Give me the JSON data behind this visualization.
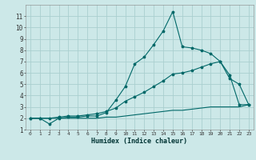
{
  "xlabel": "Humidex (Indice chaleur)",
  "bg_color": "#cce8e8",
  "grid_color": "#aacfcf",
  "line_color": "#006868",
  "xlim": [
    -0.5,
    23.5
  ],
  "ylim": [
    1,
    12
  ],
  "xticks": [
    0,
    1,
    2,
    3,
    4,
    5,
    6,
    7,
    8,
    9,
    10,
    11,
    12,
    13,
    14,
    15,
    16,
    17,
    18,
    19,
    20,
    21,
    22,
    23
  ],
  "yticks": [
    1,
    2,
    3,
    4,
    5,
    6,
    7,
    8,
    9,
    10,
    11
  ],
  "curve1_x": [
    0,
    1,
    2,
    3,
    4,
    5,
    6,
    7,
    8,
    9,
    10,
    11,
    12,
    13,
    14,
    15,
    16,
    17,
    18,
    19,
    20,
    21,
    22,
    23
  ],
  "curve1_y": [
    2.0,
    2.0,
    1.5,
    2.0,
    2.1,
    2.1,
    2.2,
    2.2,
    2.5,
    3.6,
    4.8,
    6.8,
    7.4,
    8.5,
    9.7,
    11.4,
    8.3,
    8.2,
    8.0,
    7.7,
    7.0,
    5.5,
    5.0,
    3.2
  ],
  "curve2_x": [
    0,
    1,
    2,
    3,
    4,
    5,
    6,
    7,
    8,
    9,
    10,
    11,
    12,
    13,
    14,
    15,
    16,
    17,
    18,
    19,
    20,
    21,
    22,
    23
  ],
  "curve2_y": [
    2.0,
    2.0,
    2.0,
    2.1,
    2.2,
    2.2,
    2.3,
    2.4,
    2.6,
    2.9,
    3.5,
    3.9,
    4.3,
    4.8,
    5.3,
    5.9,
    6.0,
    6.2,
    6.5,
    6.8,
    7.0,
    5.8,
    3.2,
    3.2
  ],
  "curve3_x": [
    0,
    1,
    2,
    3,
    4,
    5,
    6,
    7,
    8,
    9,
    10,
    11,
    12,
    13,
    14,
    15,
    16,
    17,
    18,
    19,
    20,
    21,
    22,
    23
  ],
  "curve3_y": [
    2.0,
    2.0,
    2.0,
    2.0,
    2.0,
    2.0,
    2.0,
    2.0,
    2.1,
    2.1,
    2.2,
    2.3,
    2.4,
    2.5,
    2.6,
    2.7,
    2.7,
    2.8,
    2.9,
    3.0,
    3.0,
    3.0,
    3.0,
    3.2
  ]
}
